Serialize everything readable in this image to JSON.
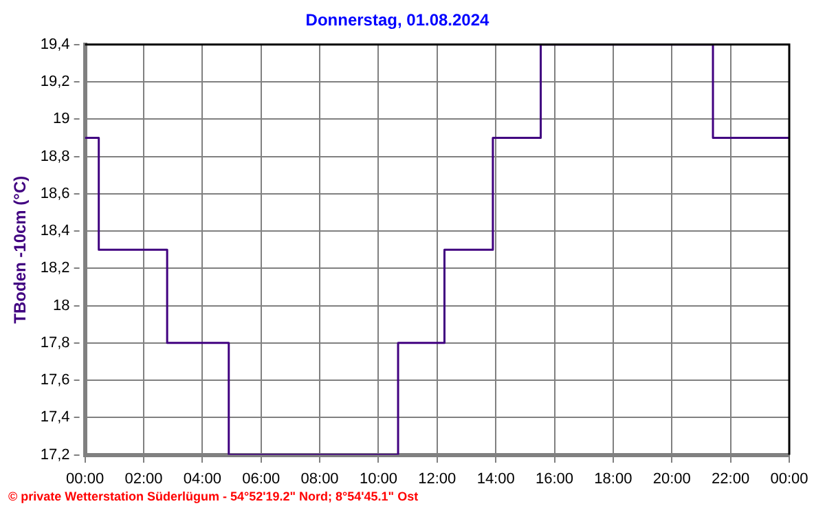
{
  "chart_data": {
    "type": "step",
    "title": "Donnerstag, 01.08.2024",
    "ylabel": "TBoden -10cm (°C)",
    "annotations": [
      "© private Wetterstation Süderlügum - 54°52'19.2\" Nord; 8°54'45.1\" Ost"
    ],
    "x": [
      0,
      0.47,
      2.8,
      4.9,
      10.67,
      12.25,
      13.9,
      15.53,
      21.4,
      24
    ],
    "series": [
      {
        "color": "#400080",
        "values": [
          18.9,
          18.3,
          17.8,
          17.2,
          17.8,
          18.3,
          18.9,
          19.4,
          18.9,
          18.9
        ]
      }
    ],
    "xlim": [
      0,
      24
    ],
    "xticks": [
      {
        "value": 0,
        "label": "00:00"
      },
      {
        "value": 2,
        "label": "02:00"
      },
      {
        "value": 4,
        "label": "04:00"
      },
      {
        "value": 6,
        "label": "06:00"
      },
      {
        "value": 8,
        "label": "08:00"
      },
      {
        "value": 10,
        "label": "10:00"
      },
      {
        "value": 12,
        "label": "12:00"
      },
      {
        "value": 14,
        "label": "14:00"
      },
      {
        "value": 16,
        "label": "16:00"
      },
      {
        "value": 18,
        "label": "18:00"
      },
      {
        "value": 20,
        "label": "20:00"
      },
      {
        "value": 22,
        "label": "22:00"
      },
      {
        "value": 24,
        "label": "00:00"
      }
    ],
    "ylim": [
      17.2,
      19.4
    ],
    "yticks": [
      {
        "value": 17.2,
        "label": "17,2"
      },
      {
        "value": 17.4,
        "label": "17,4"
      },
      {
        "value": 17.6,
        "label": "17,6"
      },
      {
        "value": 17.8,
        "label": "17,8"
      },
      18,
      {
        "value": 18.2,
        "label": "18,2"
      },
      {
        "value": 18.4,
        "label": "18,4"
      },
      {
        "value": 18.6,
        "label": "18,6"
      },
      {
        "value": 18.8,
        "label": "18,8"
      },
      19,
      {
        "value": 19.2,
        "label": "19,2"
      },
      {
        "value": 19.4,
        "label": "19,4"
      }
    ],
    "grid": true,
    "legend": false,
    "marker": "none",
    "line_style": "solid"
  }
}
